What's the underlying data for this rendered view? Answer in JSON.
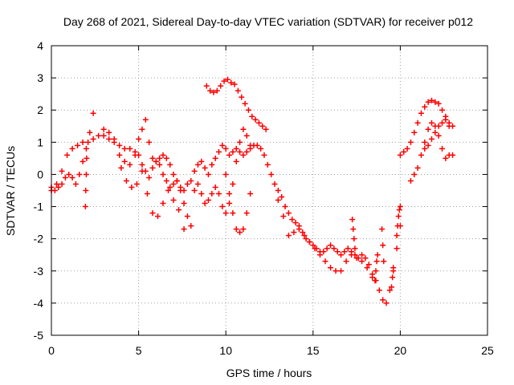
{
  "chart_data": {
    "type": "scatter",
    "title": "Day 268 of 2021, Sidereal Day-to-day VTEC variation (SDTVAR) for receiver p012",
    "xlabel": "GPS time / hours",
    "ylabel": "SDTVAR / TECUs",
    "xlim": [
      0,
      25
    ],
    "ylim": [
      -5,
      4
    ],
    "xticks": [
      0,
      5,
      10,
      15,
      20,
      25
    ],
    "yticks": [
      -5,
      -4,
      -3,
      -2,
      -1,
      0,
      1,
      2,
      3,
      4
    ],
    "grid": true,
    "marker": "+",
    "color": "#ff0000",
    "series": [
      {
        "name": "main",
        "x": [
          0.0,
          0.3,
          0.6,
          0.9,
          1.2,
          1.5,
          1.8,
          2.1,
          2.4,
          2.7,
          3.0,
          3.3,
          3.6,
          3.9,
          4.2,
          4.5,
          4.8,
          5.0,
          5.2,
          5.4,
          5.6,
          5.8,
          6.0,
          6.2,
          6.4,
          6.6,
          6.8,
          7.0,
          7.2,
          7.4,
          7.6,
          7.8,
          8.0,
          8.2,
          8.4,
          8.6,
          8.8,
          9.0,
          9.2,
          9.4,
          9.6,
          9.8,
          10.0,
          10.2,
          10.4,
          10.6,
          10.8,
          11.0,
          11.2,
          11.4,
          11.6,
          11.8,
          12.0,
          12.2,
          12.4,
          12.6,
          12.8,
          13.0,
          13.2,
          13.4,
          13.6,
          13.8,
          14.0,
          14.2,
          14.4,
          14.6,
          14.8,
          15.0,
          15.2,
          15.4,
          15.6,
          15.8,
          16.0,
          16.2,
          16.4,
          16.6,
          16.8,
          17.0,
          17.2,
          17.4,
          17.6,
          17.8,
          18.0,
          18.2,
          18.4,
          18.6,
          18.8,
          19.0,
          19.2,
          19.4,
          19.6,
          19.8,
          20.0
        ],
        "y": [
          -0.4,
          -0.3,
          0.1,
          0.6,
          0.8,
          0.9,
          1.0,
          1.0,
          1.1,
          1.2,
          1.2,
          1.1,
          1.0,
          0.9,
          0.8,
          0.8,
          0.7,
          0.6,
          0.3,
          0.1,
          -0.1,
          0.2,
          0.4,
          0.3,
          0.0,
          -0.2,
          -0.4,
          -0.3,
          -0.2,
          -0.4,
          -0.5,
          -0.3,
          -0.2,
          0.1,
          0.3,
          0.4,
          0.2,
          0.0,
          0.3,
          0.5,
          0.7,
          0.9,
          0.8,
          0.6,
          0.7,
          0.8,
          0.7,
          0.6,
          0.7,
          0.8,
          0.9,
          0.9,
          0.8,
          0.6,
          0.3,
          0.0,
          -0.3,
          -0.5,
          -0.7,
          -1.0,
          -1.2,
          -1.4,
          -1.5,
          -1.6,
          -1.8,
          -2.0,
          -2.1,
          -2.2,
          -2.3,
          -2.4,
          -2.4,
          -2.3,
          -2.2,
          -2.3,
          -2.4,
          -2.5,
          -2.4,
          -2.3,
          -2.4,
          -2.5,
          -2.6,
          -2.5,
          -2.6,
          -2.8,
          -3.1,
          -3.3,
          -3.6,
          -3.9,
          -4.0,
          -3.6,
          -3.0,
          -2.3,
          -1.6
        ]
      },
      {
        "name": "early low track",
        "x": [
          0.0,
          0.2,
          0.4,
          0.6,
          0.8,
          1.0,
          1.2,
          1.4,
          1.6,
          1.8,
          2.0,
          2.2,
          2.4
        ],
        "y": [
          -0.5,
          -0.5,
          -0.4,
          -0.3,
          -0.1,
          0.0,
          -0.1,
          -0.3,
          0.0,
          0.4,
          0.8,
          1.3,
          1.9
        ]
      },
      {
        "name": "spike 2h",
        "x": [
          1.95,
          1.97,
          2.0,
          2.02
        ],
        "y": [
          -1.0,
          -0.5,
          0.0,
          0.5
        ]
      },
      {
        "name": "mid track A",
        "x": [
          3.0,
          3.3,
          3.6,
          3.9,
          4.2,
          4.5,
          4.8,
          5.0,
          5.2,
          5.4,
          5.6,
          5.8,
          6.0,
          6.2,
          6.4,
          6.6,
          6.8,
          7.0,
          7.2,
          7.4,
          7.6,
          7.8,
          8.0
        ],
        "y": [
          1.4,
          1.3,
          1.1,
          0.6,
          0.4,
          0.3,
          0.6,
          1.1,
          1.4,
          1.7,
          1.0,
          0.5,
          0.4,
          0.5,
          0.6,
          0.5,
          0.3,
          0.0,
          -0.2,
          -0.5,
          -0.9,
          -1.3,
          -1.6
        ]
      },
      {
        "name": "mid track B",
        "x": [
          4.0,
          4.3,
          4.6,
          4.9,
          5.2,
          5.5,
          5.8,
          6.1,
          6.4,
          6.7,
          7.0,
          7.3,
          7.6
        ],
        "y": [
          0.2,
          -0.2,
          -0.4,
          -0.3,
          0.1,
          -0.6,
          -1.2,
          -1.3,
          -0.9,
          -0.5,
          -0.8,
          -1.1,
          -1.7
        ]
      },
      {
        "name": "mid track C",
        "x": [
          8.2,
          8.4,
          8.6,
          8.8,
          9.0,
          9.2,
          9.4,
          9.6,
          9.8,
          10.0,
          10.2,
          10.4,
          10.6,
          10.8,
          11.0,
          11.2,
          11.4
        ],
        "y": [
          -0.5,
          -0.3,
          -0.6,
          -0.9,
          -0.8,
          -0.6,
          -0.4,
          -0.6,
          -1.0,
          -1.2,
          -0.9,
          -0.3,
          0.4,
          1.0,
          1.4,
          1.2,
          0.9
        ]
      },
      {
        "name": "deep dip 10h",
        "x": [
          10.0,
          10.2,
          10.4,
          10.6,
          10.8,
          11.0,
          11.2,
          11.4
        ],
        "y": [
          0.0,
          -0.6,
          -1.2,
          -1.7,
          -1.8,
          -1.7,
          -1.2,
          -0.6
        ]
      },
      {
        "name": "upper arc",
        "x": [
          8.9,
          9.1,
          9.3,
          9.5,
          9.7,
          9.9,
          10.1,
          10.3,
          10.5,
          10.7,
          10.9,
          11.1,
          11.3,
          11.5,
          11.7,
          11.9,
          12.1,
          12.3
        ],
        "y": [
          2.75,
          2.6,
          2.55,
          2.6,
          2.75,
          2.9,
          2.95,
          2.85,
          2.8,
          2.6,
          2.4,
          2.2,
          2.0,
          1.8,
          1.7,
          1.6,
          1.5,
          1.4
        ]
      },
      {
        "name": "late track",
        "x": [
          13.0,
          13.3,
          13.6,
          13.9,
          14.2,
          14.5,
          14.8,
          15.1,
          15.4,
          15.7,
          16.0,
          16.3,
          16.6,
          16.9,
          17.2,
          17.5,
          17.8,
          18.1,
          18.4
        ],
        "y": [
          -0.8,
          -1.3,
          -1.9,
          -1.8,
          -1.7,
          -1.9,
          -2.1,
          -2.3,
          -2.5,
          -2.7,
          -2.9,
          -3.0,
          -3.0,
          -2.7,
          -2.5,
          -2.6,
          -2.7,
          -2.9,
          -3.2
        ]
      },
      {
        "name": "spike 17.5h",
        "x": [
          17.25,
          17.3,
          17.35,
          17.4
        ],
        "y": [
          -1.4,
          -1.7,
          -2.0,
          -2.3
        ]
      },
      {
        "name": "spikes 18-19h",
        "x": [
          18.55,
          18.6,
          18.65,
          18.7,
          18.95,
          19.0,
          19.05,
          19.5,
          19.55,
          19.6
        ],
        "y": [
          -3.3,
          -3.0,
          -2.7,
          -2.5,
          -1.7,
          -2.2,
          -2.7,
          -3.5,
          -3.2,
          -2.9
        ]
      },
      {
        "name": "recovery",
        "x": [
          19.8,
          19.85,
          19.9,
          19.95,
          20.0
        ],
        "y": [
          -1.9,
          -1.6,
          -1.3,
          -1.1,
          -1.0
        ]
      },
      {
        "name": "post 20h upper",
        "x": [
          20.0,
          20.2,
          20.4,
          20.6,
          20.8,
          21.0,
          21.2,
          21.4,
          21.6,
          21.8,
          22.0,
          22.2,
          22.4,
          22.6,
          22.8,
          23.0
        ],
        "y": [
          0.6,
          0.7,
          0.8,
          1.0,
          1.3,
          1.6,
          1.9,
          2.1,
          2.25,
          2.3,
          2.25,
          2.2,
          2.0,
          1.8,
          1.6,
          1.5
        ]
      },
      {
        "name": "post 20h lower",
        "x": [
          20.6,
          20.8,
          21.0,
          21.2,
          21.4,
          21.6,
          21.8,
          22.0,
          22.2,
          22.4,
          22.6,
          22.8,
          23.0
        ],
        "y": [
          -0.2,
          0.0,
          0.2,
          0.6,
          1.0,
          1.4,
          1.6,
          1.5,
          1.2,
          0.8,
          0.5,
          0.6,
          0.6
        ]
      },
      {
        "name": "post 20h mid",
        "x": [
          21.4,
          21.6,
          21.8,
          22.0,
          22.2,
          22.4,
          22.6,
          22.8
        ],
        "y": [
          0.8,
          0.9,
          1.1,
          1.3,
          1.5,
          1.6,
          1.7,
          1.5
        ]
      }
    ]
  }
}
